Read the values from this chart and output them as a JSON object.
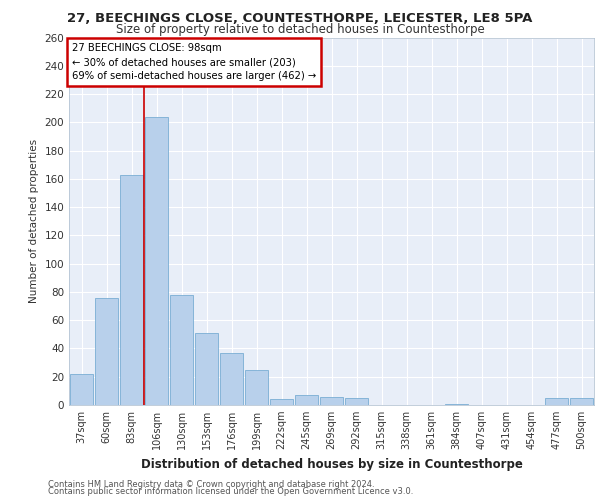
{
  "title": "27, BEECHINGS CLOSE, COUNTESTHORPE, LEICESTER, LE8 5PA",
  "subtitle": "Size of property relative to detached houses in Countesthorpe",
  "xlabel": "Distribution of detached houses by size in Countesthorpe",
  "ylabel": "Number of detached properties",
  "footer_line1": "Contains HM Land Registry data © Crown copyright and database right 2024.",
  "footer_line2": "Contains public sector information licensed under the Open Government Licence v3.0.",
  "categories": [
    "37sqm",
    "60sqm",
    "83sqm",
    "106sqm",
    "130sqm",
    "153sqm",
    "176sqm",
    "199sqm",
    "222sqm",
    "245sqm",
    "269sqm",
    "292sqm",
    "315sqm",
    "338sqm",
    "361sqm",
    "384sqm",
    "407sqm",
    "431sqm",
    "454sqm",
    "477sqm",
    "500sqm"
  ],
  "values": [
    22,
    76,
    163,
    204,
    78,
    51,
    37,
    25,
    4,
    7,
    6,
    5,
    0,
    0,
    0,
    1,
    0,
    0,
    0,
    5,
    5
  ],
  "bar_color": "#b8d0eb",
  "bar_edge_color": "#7aaed4",
  "background_color": "#e8eef8",
  "grid_color": "#ffffff",
  "annotation_box_line1": "27 BEECHINGS CLOSE: 98sqm",
  "annotation_box_line2": "← 30% of detached houses are smaller (203)",
  "annotation_box_line3": "69% of semi-detached houses are larger (462) →",
  "annotation_box_color": "#ffffff",
  "annotation_box_edge_color": "#cc0000",
  "annotation_text_color": "#000000",
  "vline_color": "#cc0000",
  "ylim": [
    0,
    260
  ],
  "yticks": [
    0,
    20,
    40,
    60,
    80,
    100,
    120,
    140,
    160,
    180,
    200,
    220,
    240,
    260
  ]
}
